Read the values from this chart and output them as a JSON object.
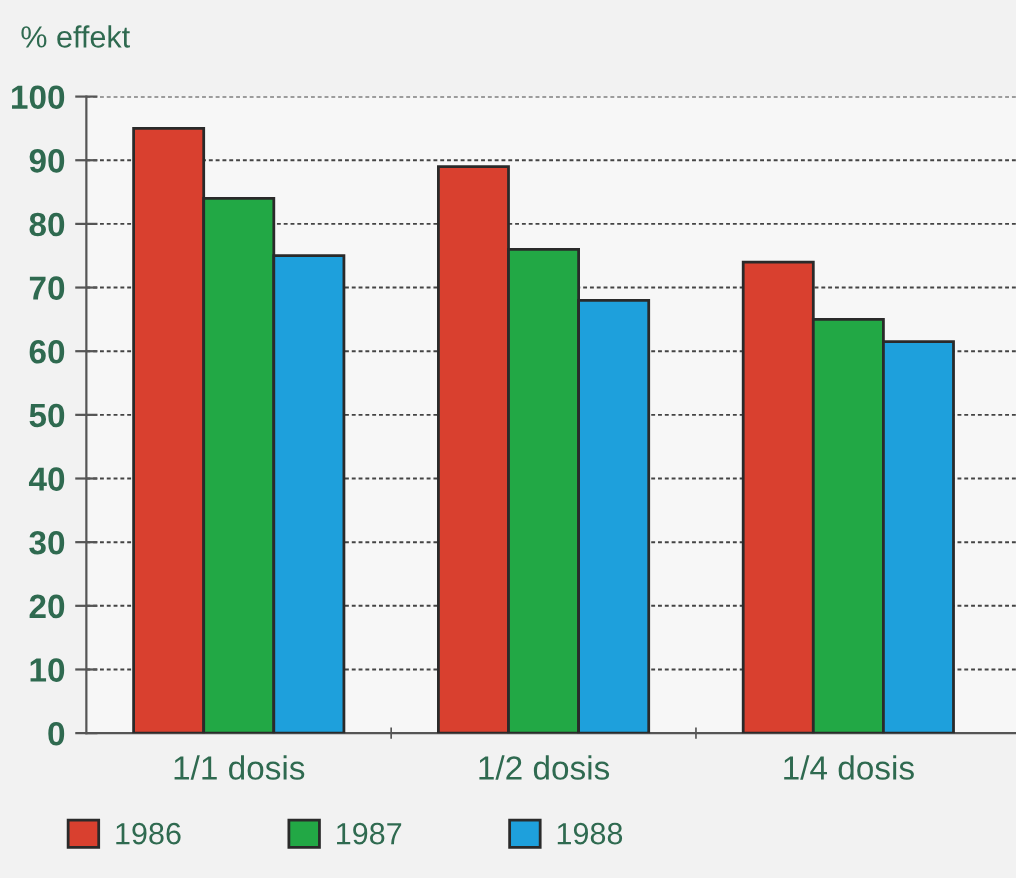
{
  "chart_data": {
    "type": "bar",
    "ylabel": "% effekt",
    "categories": [
      "1/1 dosis",
      "1/2 dosis",
      "1/4 dosis"
    ],
    "series": [
      {
        "name": "1986",
        "color": "#d9402f",
        "values": [
          95,
          89,
          74
        ]
      },
      {
        "name": "1987",
        "color": "#22a845",
        "values": [
          84,
          76,
          65
        ]
      },
      {
        "name": "1988",
        "color": "#1ea0dc",
        "values": [
          75,
          68,
          61.5
        ]
      }
    ],
    "ylim": [
      0,
      100
    ],
    "yticks": [
      0,
      10,
      20,
      30,
      40,
      50,
      60,
      70,
      80,
      90,
      100
    ],
    "grid": "y",
    "legend": "bottom left"
  }
}
